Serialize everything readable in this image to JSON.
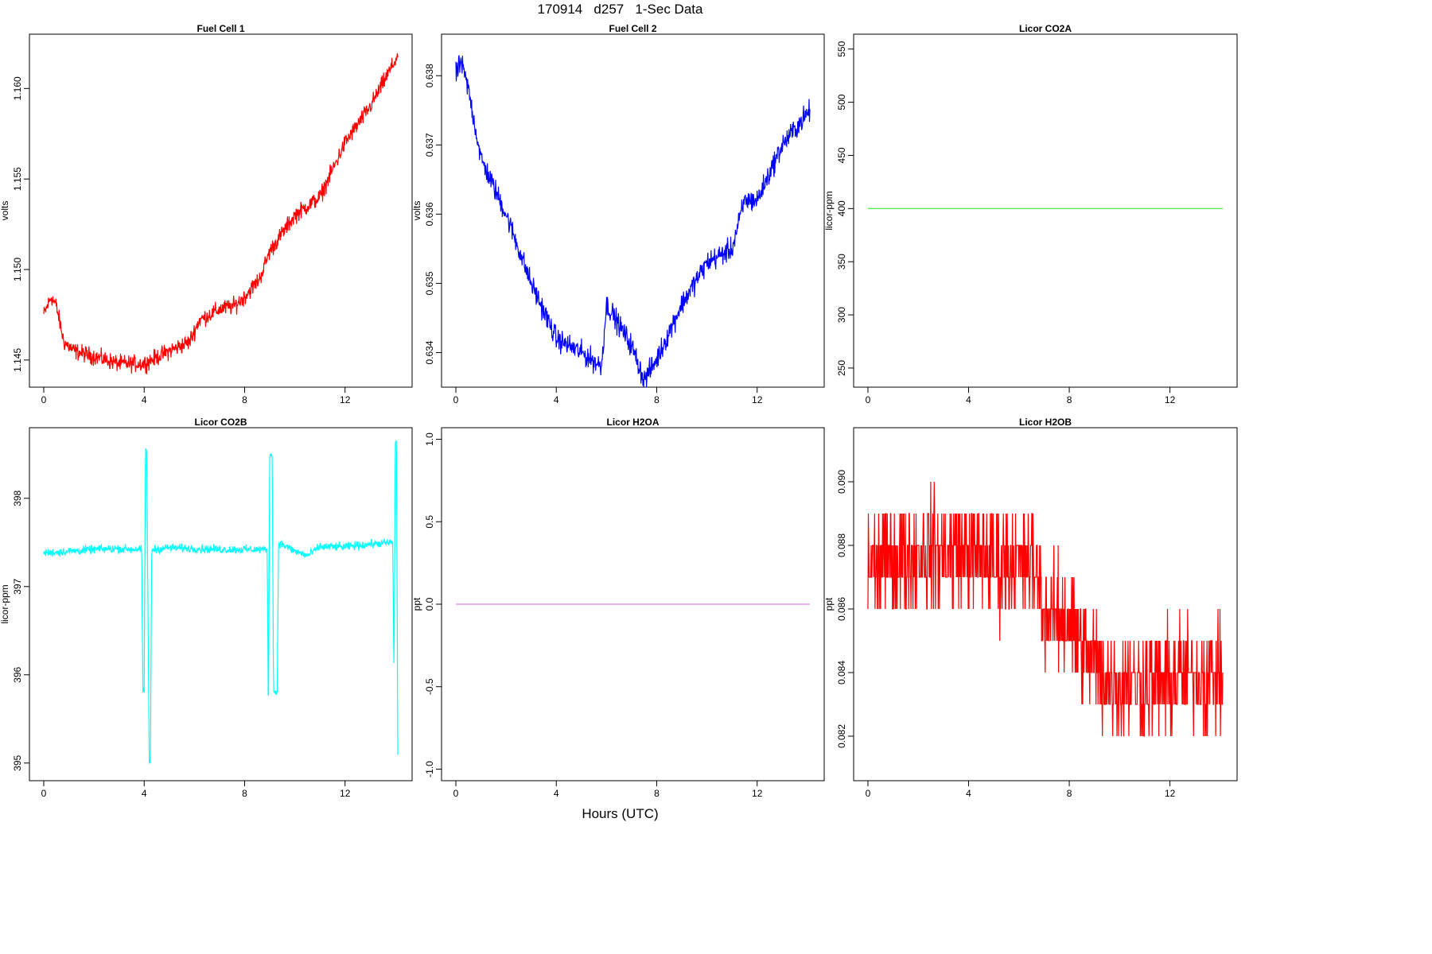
{
  "header": {
    "title": "170914   d257   1-Sec Data",
    "xlabel": "Hours (UTC)"
  },
  "chart_data": [
    {
      "type": "line",
      "title": "Fuel Cell 1",
      "ylabel": "volts",
      "color": "#ff0000",
      "xlim": [
        0,
        14.1
      ],
      "ylim": [
        1.1435,
        1.163
      ],
      "xticks": [
        0,
        4,
        8,
        12
      ],
      "yticks": [
        1.145,
        1.15,
        1.155,
        1.16
      ],
      "ytick_labels": [
        "1.145",
        "1.150",
        "1.155",
        "1.160"
      ],
      "noise": 0.0004,
      "x": [
        0,
        0.3,
        0.5,
        0.8,
        1.2,
        2,
        3,
        4,
        5,
        5.8,
        6.2,
        7,
        7.6,
        8,
        8.6,
        9,
        10,
        11,
        11.5,
        12,
        13,
        14.1
      ],
      "y": [
        1.1475,
        1.1485,
        1.148,
        1.146,
        1.1455,
        1.1452,
        1.1448,
        1.1448,
        1.1455,
        1.146,
        1.1472,
        1.1478,
        1.148,
        1.1485,
        1.1495,
        1.151,
        1.153,
        1.154,
        1.1555,
        1.157,
        1.159,
        1.1618
      ]
    },
    {
      "type": "line",
      "title": "Fuel Cell 2",
      "ylabel": "volts",
      "color": "#0000ff",
      "xlim": [
        0,
        14.1
      ],
      "ylim": [
        0.6335,
        0.6386
      ],
      "xticks": [
        0,
        4,
        8,
        12
      ],
      "yticks": [
        0.634,
        0.635,
        0.636,
        0.637,
        0.638
      ],
      "ytick_labels": [
        "0.634",
        "0.635",
        "0.636",
        "0.637",
        "0.638"
      ],
      "noise": 0.00014,
      "x": [
        0,
        0.2,
        0.5,
        1,
        2,
        3,
        4,
        5,
        5.8,
        6,
        7,
        7.5,
        8,
        9,
        10,
        11,
        11.5,
        12,
        13,
        14.1
      ],
      "y": [
        0.638,
        0.6382,
        0.6378,
        0.6368,
        0.636,
        0.635,
        0.6342,
        0.634,
        0.6338,
        0.6347,
        0.6341,
        0.6336,
        0.6339,
        0.6347,
        0.6353,
        0.6355,
        0.6362,
        0.6362,
        0.637,
        0.6375
      ]
    },
    {
      "type": "line",
      "title": "Licor CO2A",
      "ylabel": "licor-ppm",
      "color": "#33ee33",
      "xlim": [
        0,
        14.1
      ],
      "ylim": [
        232,
        564
      ],
      "xticks": [
        0,
        4,
        8,
        12
      ],
      "yticks": [
        250,
        300,
        350,
        400,
        450,
        500,
        550
      ],
      "ytick_labels": [
        "250",
        "300",
        "350",
        "400",
        "450",
        "500",
        "550"
      ],
      "noise": 0,
      "x": [
        0,
        14.1
      ],
      "y": [
        400,
        400
      ]
    },
    {
      "type": "line",
      "title": "Licor CO2B",
      "ylabel": "licor-ppm",
      "color": "#00ffff",
      "xlim": [
        0,
        14.1
      ],
      "ylim": [
        394.8,
        398.8
      ],
      "xticks": [
        0,
        4,
        8,
        12
      ],
      "yticks": [
        395,
        396,
        397,
        398
      ],
      "ytick_labels": [
        "395",
        "396",
        "397",
        "398"
      ],
      "noise": 0.04,
      "x": [
        0,
        1,
        2,
        3,
        3.9,
        3.95,
        4.0,
        4.05,
        4.1,
        4.2,
        4.25,
        4.3,
        4.35,
        5,
        6,
        7,
        8,
        8.9,
        8.95,
        9.0,
        9.1,
        9.15,
        9.3,
        9.35,
        10,
        10.5,
        11,
        12,
        13,
        13.9,
        13.95,
        14.0,
        14.05,
        14.1
      ],
      "y": [
        397.38,
        397.4,
        397.42,
        397.43,
        397.42,
        395.8,
        395.82,
        398.55,
        398.55,
        395.0,
        395.0,
        397.42,
        397.42,
        397.44,
        397.43,
        397.42,
        397.42,
        397.42,
        395.4,
        398.5,
        398.5,
        395.8,
        395.8,
        397.5,
        397.4,
        397.35,
        397.45,
        397.45,
        397.48,
        397.5,
        395.9,
        398.65,
        398.65,
        395.1
      ]
    },
    {
      "type": "line",
      "title": "Licor H2OA",
      "ylabel": "ppt",
      "color": "#dd88dd",
      "xlim": [
        0,
        14.1
      ],
      "ylim": [
        -1.07,
        1.07
      ],
      "xticks": [
        0,
        4,
        8,
        12
      ],
      "yticks": [
        -1.0,
        -0.5,
        0.0,
        0.5,
        1.0
      ],
      "ytick_labels": [
        "-1.0",
        "-0.5",
        "0.0",
        "0.5",
        "1.0"
      ],
      "noise": 0,
      "x": [
        0,
        14.1
      ],
      "y": [
        0,
        0
      ]
    },
    {
      "type": "line",
      "title": "Licor H2OB",
      "ylabel": "ppt",
      "color": "#ff0000",
      "xlim": [
        0,
        14.1
      ],
      "ylim": [
        0.0806,
        0.0917
      ],
      "xticks": [
        0,
        4,
        8,
        12
      ],
      "yticks": [
        0.082,
        0.084,
        0.086,
        0.088,
        0.09
      ],
      "ytick_labels": [
        "0.082",
        "0.084",
        "0.086",
        "0.088",
        "0.090"
      ],
      "noise": 0.0015,
      "step": 0.001,
      "x": [
        0,
        1,
        2,
        3,
        4,
        5,
        6,
        6.7,
        7,
        8,
        9,
        10,
        11,
        12,
        13,
        14.1
      ],
      "y": [
        0.0872,
        0.0876,
        0.0877,
        0.0878,
        0.0877,
        0.0875,
        0.0874,
        0.0873,
        0.086,
        0.0855,
        0.0842,
        0.0836,
        0.0837,
        0.0838,
        0.0839,
        0.084
      ]
    }
  ]
}
